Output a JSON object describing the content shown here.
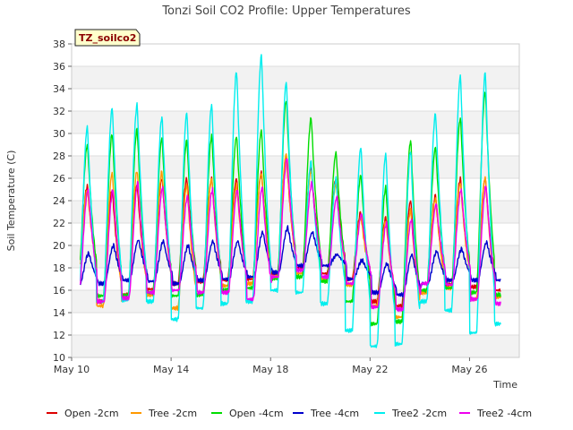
{
  "chart_data": {
    "type": "line",
    "title": "Tonzi Soil CO2 Profile: Upper Temperatures",
    "xlabel": "Time",
    "ylabel": "Soil Temperature (C)",
    "tag_label": "TZ_soilco2",
    "ylim": [
      10,
      38
    ],
    "xlim": [
      0,
      18
    ],
    "y_ticks": [
      10,
      12,
      14,
      16,
      18,
      20,
      22,
      24,
      26,
      28,
      30,
      32,
      34,
      36,
      38
    ],
    "x_ticks": [
      {
        "day": 0,
        "label": "May 10"
      },
      {
        "day": 4,
        "label": "May 14"
      },
      {
        "day": 8,
        "label": "May 18"
      },
      {
        "day": 12,
        "label": "May 22"
      },
      {
        "day": 16,
        "label": "May 26"
      }
    ],
    "x_start_day": 0.35,
    "x_end_day": 17.25,
    "grid": true,
    "legend_position": "bottom",
    "series": [
      {
        "name": "Open -2cm",
        "color": "#dd0000",
        "daily_min": [
          17.3,
          15.0,
          15.6,
          16.1,
          16.6,
          16.8,
          16.9,
          17.0,
          17.5,
          18.0,
          17.5,
          17.0,
          15.0,
          14.6,
          15.8,
          16.5,
          16.3,
          16.0
        ],
        "daily_max": [
          25.3,
          25.0,
          25.4,
          26.0,
          26.0,
          26.0,
          26.0,
          26.5,
          28.0,
          27.0,
          26.0,
          23.0,
          22.5,
          24.0,
          24.5,
          26.0,
          26.0,
          27.0
        ]
      },
      {
        "name": "Tree -2cm",
        "color": "#ff9900",
        "daily_min": [
          17.0,
          14.6,
          15.2,
          15.6,
          14.4,
          15.6,
          16.4,
          16.6,
          17.2,
          17.5,
          17.0,
          16.5,
          14.6,
          13.6,
          15.8,
          16.2,
          15.2,
          15.4
        ],
        "daily_max": [
          25.0,
          26.5,
          26.7,
          26.6,
          25.4,
          26.0,
          25.4,
          26.5,
          28.2,
          26.7,
          25.5,
          22.6,
          22.2,
          23.2,
          24.2,
          25.6,
          26.1,
          28.5
        ]
      },
      {
        "name": "Open -4cm",
        "color": "#00dd00",
        "daily_min": [
          16.5,
          15.5,
          15.5,
          15.8,
          15.5,
          15.6,
          16.0,
          16.2,
          17.0,
          17.2,
          16.8,
          15.0,
          13.0,
          13.2,
          16.0,
          16.2,
          15.8,
          15.6
        ],
        "daily_max": [
          29.0,
          30.0,
          30.4,
          29.6,
          29.4,
          29.8,
          29.8,
          30.3,
          33.0,
          31.4,
          28.3,
          26.3,
          25.2,
          29.4,
          28.8,
          31.4,
          33.8,
          34.0
        ]
      },
      {
        "name": "Tree -4cm",
        "color": "#0000cc",
        "daily_min": [
          16.5,
          16.6,
          16.9,
          16.8,
          16.6,
          16.9,
          17.0,
          17.2,
          17.6,
          18.2,
          18.2,
          17.0,
          15.8,
          15.6,
          16.6,
          16.9,
          16.9,
          16.9
        ],
        "daily_max": [
          19.3,
          20.0,
          20.5,
          20.4,
          20.0,
          20.4,
          20.4,
          21.2,
          21.6,
          21.2,
          19.2,
          18.7,
          18.4,
          19.2,
          19.5,
          19.7,
          20.3,
          20.3
        ]
      },
      {
        "name": "Tree2 -2cm",
        "color": "#00eeee",
        "daily_min": [
          14.1,
          15.0,
          15.1,
          15.0,
          13.4,
          14.4,
          14.8,
          15.0,
          16.0,
          15.8,
          14.8,
          12.4,
          11.0,
          11.2,
          15.0,
          14.2,
          12.2,
          13.0
        ],
        "daily_max": [
          30.6,
          32.3,
          32.6,
          31.5,
          31.9,
          32.6,
          35.6,
          37.0,
          34.6,
          27.5,
          26.0,
          28.8,
          28.2,
          28.5,
          31.8,
          35.2,
          35.5,
          35.5
        ]
      },
      {
        "name": "Tree2 -4cm",
        "color": "#ee00ee",
        "daily_min": [
          16.0,
          15.0,
          15.3,
          15.8,
          16.0,
          15.8,
          15.8,
          15.2,
          17.2,
          17.8,
          17.2,
          16.6,
          14.5,
          14.3,
          16.6,
          16.5,
          15.2,
          14.8
        ],
        "daily_max": [
          25.0,
          25.0,
          25.6,
          25.2,
          24.4,
          25.0,
          25.0,
          25.2,
          27.8,
          25.6,
          24.3,
          22.8,
          22.0,
          22.3,
          23.7,
          25.0,
          25.3,
          27.5
        ]
      }
    ]
  }
}
